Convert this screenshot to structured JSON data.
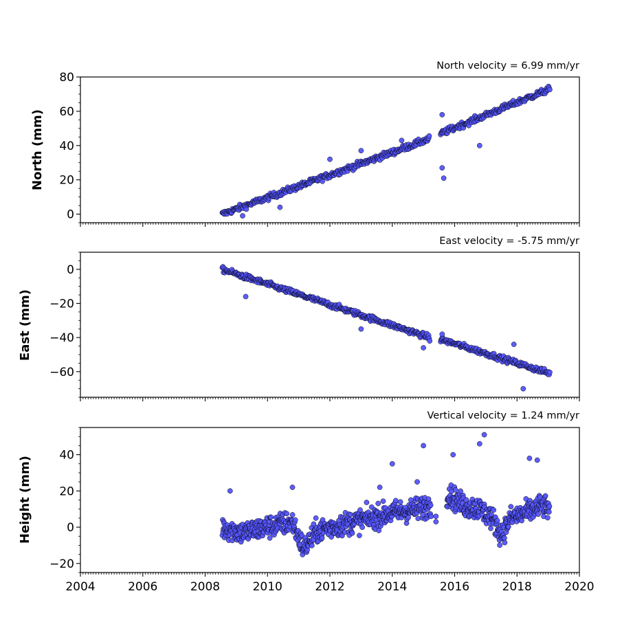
{
  "chart_data": [
    {
      "type": "scatter",
      "title": "North velocity = 6.99 mm/yr",
      "xlabel": "",
      "ylabel": "North (mm)",
      "xlim": [
        2004,
        2020
      ],
      "ylim": [
        -5,
        80
      ],
      "yticks": [
        0,
        20,
        40,
        60,
        80
      ],
      "xticks": [
        2004,
        2006,
        2008,
        2010,
        2012,
        2014,
        2016,
        2018,
        2020
      ],
      "show_xtick_labels": false,
      "point_color": "#5555ff",
      "edge_color": "#000000",
      "velocity_mm_per_yr": 6.99,
      "series": [
        {
          "segments": [
            {
              "x_start": 2008.55,
              "x_end": 2015.2,
              "y_start": 0,
              "y_end": 44,
              "noise_mm": 2.2
            },
            {
              "x_start": 2015.55,
              "x_end": 2019.05,
              "y_start": 47,
              "y_end": 73,
              "noise_mm": 2.2
            }
          ],
          "outliers": [
            [
              2015.6,
              58
            ],
            [
              2015.6,
              27
            ],
            [
              2015.65,
              21
            ],
            [
              2016.8,
              40
            ],
            [
              2013.0,
              37
            ],
            [
              2012.0,
              32
            ],
            [
              2009.2,
              -1
            ],
            [
              2010.4,
              4
            ],
            [
              2014.3,
              43
            ]
          ]
        }
      ]
    },
    {
      "type": "scatter",
      "title": "East velocity = -5.75 mm/yr",
      "xlabel": "",
      "ylabel": "East (mm)",
      "xlim": [
        2004,
        2020
      ],
      "ylim": [
        -75,
        10
      ],
      "yticks": [
        -60,
        -40,
        -20,
        0
      ],
      "xticks": [
        2004,
        2006,
        2008,
        2010,
        2012,
        2014,
        2016,
        2018,
        2020
      ],
      "show_xtick_labels": false,
      "point_color": "#5555ff",
      "edge_color": "#000000",
      "velocity_mm_per_yr": -5.75,
      "series": [
        {
          "segments": [
            {
              "x_start": 2008.55,
              "x_end": 2015.2,
              "y_start": 0,
              "y_end": -40,
              "noise_mm": 2.0
            },
            {
              "x_start": 2015.55,
              "x_end": 2019.05,
              "y_start": -41,
              "y_end": -61,
              "noise_mm": 2.0
            }
          ],
          "outliers": [
            [
              2009.3,
              -16
            ],
            [
              2015.0,
              -46
            ],
            [
              2015.2,
              -42
            ],
            [
              2018.2,
              -70
            ],
            [
              2017.9,
              -44
            ],
            [
              2013.0,
              -35
            ],
            [
              2015.6,
              -38
            ]
          ]
        }
      ]
    },
    {
      "type": "scatter",
      "title": "Vertical velocity = 1.24 mm/yr",
      "xlabel": "",
      "ylabel": "Height (mm)",
      "xlim": [
        2004,
        2020
      ],
      "ylim": [
        -25,
        55
      ],
      "yticks": [
        -20,
        0,
        20,
        40
      ],
      "xticks": [
        2004,
        2006,
        2008,
        2010,
        2012,
        2014,
        2016,
        2018,
        2020
      ],
      "xtick_labels": [
        "2004",
        "2006",
        "2008",
        "2010",
        "2012",
        "2014",
        "2016",
        "2018",
        "2020"
      ],
      "show_xtick_labels": true,
      "point_color": "#5555ff",
      "edge_color": "#000000",
      "velocity_mm_per_yr": 1.24,
      "series": [
        {
          "profile": [
            [
              2008.55,
              0
            ],
            [
              2009.2,
              -3
            ],
            [
              2010.0,
              0
            ],
            [
              2010.8,
              3
            ],
            [
              2011.15,
              -12
            ],
            [
              2011.6,
              -2
            ],
            [
              2012.5,
              2
            ],
            [
              2013.3,
              5
            ],
            [
              2014.0,
              8
            ],
            [
              2014.8,
              10
            ],
            [
              2015.2,
              12
            ],
            [
              2015.8,
              18
            ],
            [
              2016.3,
              12
            ],
            [
              2016.8,
              10
            ],
            [
              2017.2,
              5
            ],
            [
              2017.5,
              -4
            ],
            [
              2017.8,
              5
            ],
            [
              2018.3,
              8
            ],
            [
              2018.8,
              12
            ],
            [
              2019.05,
              10
            ]
          ],
          "gap": [
            2015.25,
            2015.75
          ],
          "noise_mm": 4.5,
          "outliers": [
            [
              2008.8,
              20
            ],
            [
              2015.0,
              45
            ],
            [
              2016.95,
              51
            ],
            [
              2016.8,
              46
            ],
            [
              2015.95,
              40
            ],
            [
              2014.0,
              35
            ],
            [
              2018.4,
              38
            ],
            [
              2018.65,
              37
            ],
            [
              2010.8,
              22
            ],
            [
              2014.8,
              25
            ],
            [
              2015.4,
              6
            ],
            [
              2015.4,
              3
            ],
            [
              2013.6,
              22
            ]
          ]
        }
      ]
    }
  ]
}
